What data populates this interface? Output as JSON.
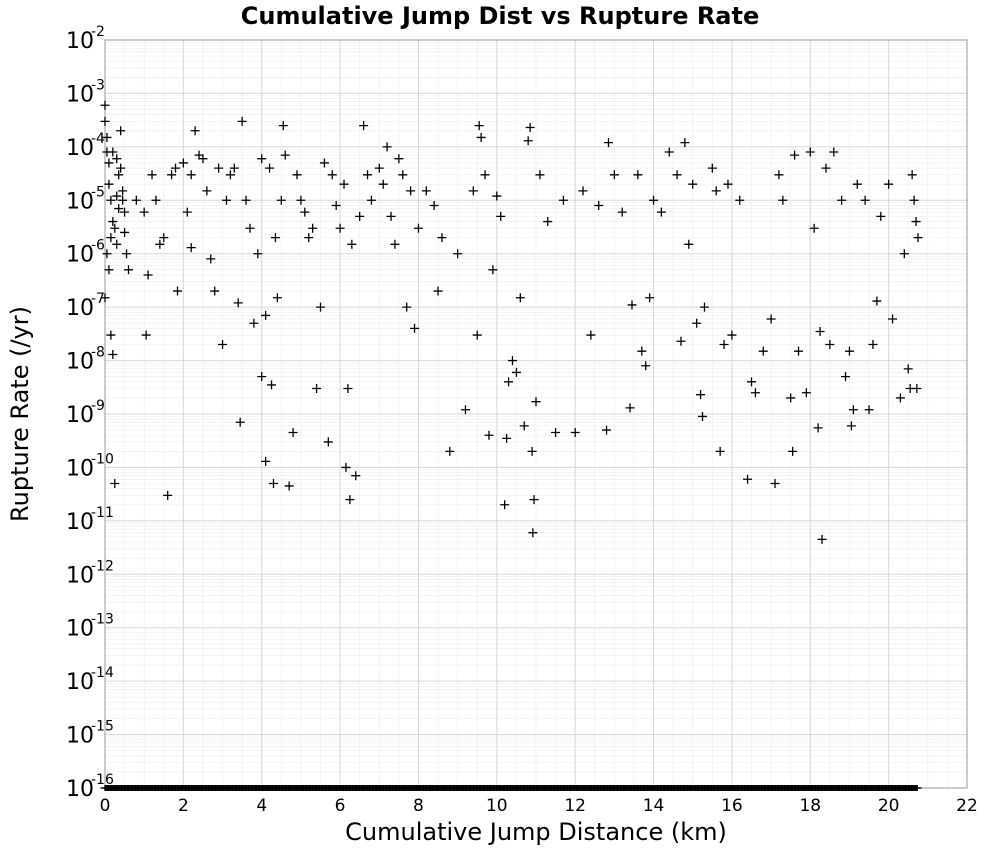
{
  "chart_data": {
    "type": "scatter",
    "title": "Cumulative Jump Dist vs Rupture Rate",
    "xlabel": "Cumulative Jump Distance (km)",
    "ylabel": "Rupture Rate (/yr)",
    "xlim": [
      0,
      22
    ],
    "ylim": [
      1e-16,
      0.01
    ],
    "yscale": "log",
    "grid": true,
    "marker": "plus",
    "x_ticks": [
      "0",
      "2",
      "4",
      "6",
      "8",
      "10",
      "12",
      "14",
      "16",
      "18",
      "20",
      "22"
    ],
    "y_ticks": [
      {
        "base": "10",
        "exp": "-2"
      },
      {
        "base": "10",
        "exp": "-3"
      },
      {
        "base": "10",
        "exp": "-4"
      },
      {
        "base": "10",
        "exp": "-5"
      },
      {
        "base": "10",
        "exp": "-6"
      },
      {
        "base": "10",
        "exp": "-7"
      },
      {
        "base": "10",
        "exp": "-8"
      },
      {
        "base": "10",
        "exp": "-9"
      },
      {
        "base": "10",
        "exp": "-10"
      },
      {
        "base": "10",
        "exp": "-11"
      },
      {
        "base": "10",
        "exp": "-12"
      },
      {
        "base": "10",
        "exp": "-13"
      },
      {
        "base": "10",
        "exp": "-14"
      },
      {
        "base": "10",
        "exp": "-15"
      },
      {
        "base": "10",
        "exp": "-16"
      }
    ],
    "points": [
      [
        0.0,
        0.0006
      ],
      [
        0.0,
        0.0003
      ],
      [
        0.05,
        0.00015
      ],
      [
        0.05,
        8e-05
      ],
      [
        0.1,
        5e-05
      ],
      [
        0.1,
        2e-05
      ],
      [
        0.15,
        1e-05
      ],
      [
        0.2,
        4e-06
      ],
      [
        0.05,
        1e-06
      ],
      [
        0.1,
        5e-07
      ],
      [
        0.0,
        1.5e-07
      ],
      [
        0.15,
        3e-08
      ],
      [
        0.2,
        1.3e-08
      ],
      [
        0.25,
        5e-11
      ],
      [
        0.3,
        6e-05
      ],
      [
        0.35,
        3e-05
      ],
      [
        0.4,
        0.0002
      ],
      [
        0.45,
        1e-05
      ],
      [
        0.5,
        2.5e-06
      ],
      [
        0.55,
        1e-06
      ],
      [
        0.6,
        5e-07
      ],
      [
        0.25,
        3e-06
      ],
      [
        0.3,
        1.5e-06
      ],
      [
        0.35,
        7e-06
      ],
      [
        0.4,
        4e-05
      ],
      [
        0.45,
        1.5e-05
      ],
      [
        0.5,
        6e-06
      ],
      [
        0.2,
        8e-05
      ],
      [
        0.3,
        1.2e-05
      ],
      [
        0.15,
        2e-06
      ],
      [
        0.8,
        1e-05
      ],
      [
        1.0,
        6e-06
      ],
      [
        1.05,
        3e-08
      ],
      [
        1.2,
        3e-05
      ],
      [
        1.1,
        4e-07
      ],
      [
        1.3,
        1e-05
      ],
      [
        1.4,
        1.5e-06
      ],
      [
        1.5,
        2e-06
      ],
      [
        1.6,
        3e-11
      ],
      [
        1.7,
        3e-05
      ],
      [
        1.8,
        4e-05
      ],
      [
        1.85,
        2e-07
      ],
      [
        2.0,
        5e-05
      ],
      [
        2.1,
        6e-06
      ],
      [
        2.2,
        3e-05
      ],
      [
        2.3,
        0.0002
      ],
      [
        2.4,
        7e-05
      ],
      [
        2.5,
        6e-05
      ],
      [
        2.2,
        1.3e-06
      ],
      [
        2.6,
        1.5e-05
      ],
      [
        2.7,
        8e-07
      ],
      [
        2.8,
        2e-07
      ],
      [
        2.9,
        4e-05
      ],
      [
        3.0,
        2e-08
      ],
      [
        3.1,
        1e-05
      ],
      [
        3.2,
        3e-05
      ],
      [
        3.3,
        4e-05
      ],
      [
        3.4,
        1.2e-07
      ],
      [
        3.5,
        0.0003
      ],
      [
        3.45,
        7e-10
      ],
      [
        3.6,
        1e-05
      ],
      [
        3.7,
        3e-06
      ],
      [
        3.8,
        5e-08
      ],
      [
        3.9,
        1e-06
      ],
      [
        4.0,
        6e-05
      ],
      [
        4.0,
        5e-09
      ],
      [
        4.1,
        1.3e-10
      ],
      [
        4.1,
        7e-08
      ],
      [
        4.2,
        4e-05
      ],
      [
        4.25,
        3.5e-09
      ],
      [
        4.3,
        5e-11
      ],
      [
        4.35,
        2e-06
      ],
      [
        4.4,
        1.5e-07
      ],
      [
        4.5,
        1e-05
      ],
      [
        4.55,
        0.00025
      ],
      [
        4.6,
        7e-05
      ],
      [
        4.7,
        4.5e-11
      ],
      [
        4.8,
        4.5e-10
      ],
      [
        4.9,
        3e-05
      ],
      [
        5.0,
        1e-05
      ],
      [
        5.1,
        6e-06
      ],
      [
        5.2,
        2e-06
      ],
      [
        5.3,
        3e-06
      ],
      [
        5.4,
        3e-09
      ],
      [
        5.5,
        1e-07
      ],
      [
        5.6,
        5e-05
      ],
      [
        5.7,
        3e-10
      ],
      [
        5.8,
        3e-05
      ],
      [
        5.9,
        8e-06
      ],
      [
        6.0,
        3e-06
      ],
      [
        6.1,
        2e-05
      ],
      [
        6.15,
        1e-10
      ],
      [
        6.2,
        3e-09
      ],
      [
        6.25,
        2.5e-11
      ],
      [
        6.3,
        1.5e-06
      ],
      [
        6.4,
        7e-11
      ],
      [
        6.5,
        5e-06
      ],
      [
        6.6,
        0.00025
      ],
      [
        6.7,
        3e-05
      ],
      [
        6.8,
        1e-05
      ],
      [
        7.0,
        4e-05
      ],
      [
        7.1,
        2e-05
      ],
      [
        7.2,
        0.0001
      ],
      [
        7.3,
        5e-06
      ],
      [
        7.4,
        1.5e-06
      ],
      [
        7.5,
        6e-05
      ],
      [
        7.6,
        3e-05
      ],
      [
        7.7,
        1e-07
      ],
      [
        7.8,
        1.5e-05
      ],
      [
        7.9,
        4e-08
      ],
      [
        8.0,
        3e-06
      ],
      [
        8.2,
        1.5e-05
      ],
      [
        8.4,
        8e-06
      ],
      [
        8.5,
        2e-07
      ],
      [
        8.6,
        2e-06
      ],
      [
        8.8,
        2e-10
      ],
      [
        9.0,
        1e-06
      ],
      [
        9.2,
        1.2e-09
      ],
      [
        9.4,
        1.5e-05
      ],
      [
        9.5,
        3e-08
      ],
      [
        9.55,
        0.00025
      ],
      [
        9.6,
        0.00015
      ],
      [
        9.7,
        3e-05
      ],
      [
        9.8,
        4e-10
      ],
      [
        9.9,
        5e-07
      ],
      [
        10.0,
        1.2e-05
      ],
      [
        10.1,
        5e-06
      ],
      [
        10.2,
        2e-11
      ],
      [
        10.25,
        3.5e-10
      ],
      [
        10.3,
        4e-09
      ],
      [
        10.4,
        1e-08
      ],
      [
        10.5,
        6e-09
      ],
      [
        10.6,
        1.5e-07
      ],
      [
        10.7,
        6e-10
      ],
      [
        10.8,
        0.00013
      ],
      [
        10.85,
        0.00023
      ],
      [
        10.9,
        2e-10
      ],
      [
        10.92,
        6e-12
      ],
      [
        10.95,
        2.5e-11
      ],
      [
        11.0,
        1.7e-09
      ],
      [
        11.1,
        3e-05
      ],
      [
        11.3,
        4e-06
      ],
      [
        11.5,
        4.5e-10
      ],
      [
        11.7,
        1e-05
      ],
      [
        12.0,
        4.5e-10
      ],
      [
        12.2,
        1.5e-05
      ],
      [
        12.4,
        3e-08
      ],
      [
        12.6,
        8e-06
      ],
      [
        12.8,
        5e-10
      ],
      [
        12.85,
        0.00012
      ],
      [
        13.0,
        3e-05
      ],
      [
        13.2,
        6e-06
      ],
      [
        13.4,
        1.3e-09
      ],
      [
        13.45,
        1.1e-07
      ],
      [
        13.6,
        3e-05
      ],
      [
        13.7,
        1.5e-08
      ],
      [
        13.8,
        8e-09
      ],
      [
        13.9,
        1.5e-07
      ],
      [
        14.0,
        1e-05
      ],
      [
        14.2,
        6e-06
      ],
      [
        14.4,
        8e-05
      ],
      [
        14.6,
        3e-05
      ],
      [
        14.7,
        2.3e-08
      ],
      [
        14.8,
        0.00012
      ],
      [
        14.9,
        1.5e-06
      ],
      [
        15.0,
        2e-05
      ],
      [
        15.1,
        5e-08
      ],
      [
        15.2,
        2.3e-09
      ],
      [
        15.25,
        9e-10
      ],
      [
        15.3,
        1e-07
      ],
      [
        15.5,
        4e-05
      ],
      [
        15.6,
        1.5e-05
      ],
      [
        15.7,
        2e-10
      ],
      [
        15.8,
        2e-08
      ],
      [
        15.9,
        2e-05
      ],
      [
        16.0,
        3e-08
      ],
      [
        16.2,
        1e-05
      ],
      [
        16.4,
        6e-11
      ],
      [
        16.5,
        4e-09
      ],
      [
        16.6,
        2.5e-09
      ],
      [
        16.8,
        1.5e-08
      ],
      [
        17.0,
        6e-08
      ],
      [
        17.1,
        5e-11
      ],
      [
        17.2,
        3e-05
      ],
      [
        17.3,
        1e-05
      ],
      [
        17.5,
        2e-09
      ],
      [
        17.55,
        2e-10
      ],
      [
        17.6,
        7e-05
      ],
      [
        17.7,
        1.5e-08
      ],
      [
        17.9,
        2.5e-09
      ],
      [
        18.0,
        8e-05
      ],
      [
        18.1,
        3e-06
      ],
      [
        18.2,
        5.5e-10
      ],
      [
        18.25,
        3.5e-08
      ],
      [
        18.3,
        4.5e-12
      ],
      [
        18.4,
        4e-05
      ],
      [
        18.5,
        2e-08
      ],
      [
        18.6,
        8e-05
      ],
      [
        18.8,
        1e-05
      ],
      [
        18.9,
        5e-09
      ],
      [
        19.0,
        1.5e-08
      ],
      [
        19.05,
        6e-10
      ],
      [
        19.1,
        1.2e-09
      ],
      [
        19.2,
        2e-05
      ],
      [
        19.4,
        1e-05
      ],
      [
        19.5,
        1.2e-09
      ],
      [
        19.6,
        2e-08
      ],
      [
        19.7,
        1.3e-07
      ],
      [
        19.8,
        5e-06
      ],
      [
        20.0,
        2e-05
      ],
      [
        20.1,
        6e-08
      ],
      [
        20.3,
        2e-09
      ],
      [
        20.4,
        1e-06
      ],
      [
        20.5,
        7e-09
      ],
      [
        20.55,
        3e-09
      ],
      [
        20.6,
        3e-05
      ],
      [
        20.65,
        1e-05
      ],
      [
        20.7,
        4e-06
      ],
      [
        20.72,
        3e-09
      ],
      [
        20.75,
        2e-06
      ]
    ],
    "baseline": {
      "x_start": 0,
      "x_end": 20.75,
      "y": 1e-16
    }
  }
}
